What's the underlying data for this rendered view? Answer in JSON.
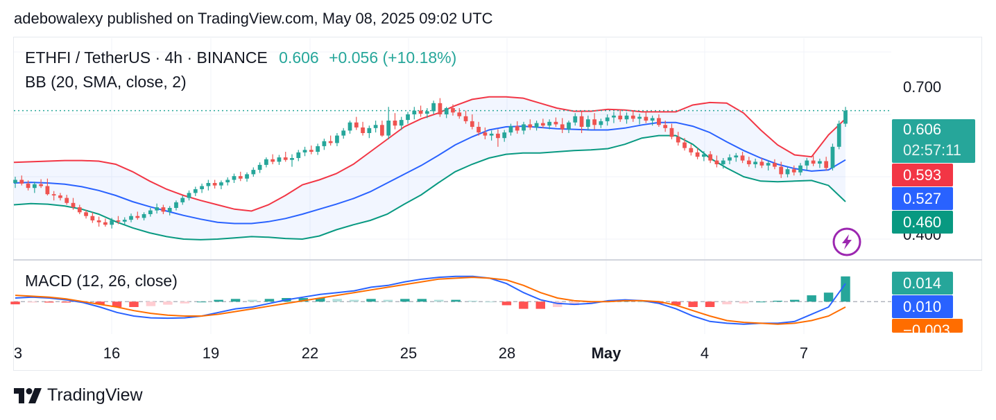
{
  "header": {
    "publisher": "adebowalexy published on TradingView.com, May 08, 2025 09:02 UTC"
  },
  "legend": {
    "symbol": "ETHFI / TetherUS · 4h · BINANCE",
    "price": "0.606",
    "change": "+0.056 (+10.18%)",
    "bb": "BB (20, SMA, close, 2)",
    "macd": "MACD (12, 26, close)"
  },
  "price_axis": {
    "labels": [
      "0.700",
      "0.400"
    ]
  },
  "tags": {
    "last_price": "0.606",
    "countdown": "02:57:11",
    "bb_upper": "0.593",
    "bb_basis": "0.527",
    "bb_lower": "0.460",
    "macd_hist": "0.014",
    "macd_line": "0.010",
    "signal_line": "−0.003"
  },
  "x_axis": {
    "labels": [
      "3",
      "16",
      "19",
      "22",
      "25",
      "28",
      "May",
      "4",
      "7"
    ]
  },
  "brand": {
    "name": "TradingView"
  },
  "colors": {
    "up": "#26a69a",
    "down": "#ef5350",
    "bb_upper": "#f23645",
    "bb_basis": "#2962ff",
    "bb_lower": "#089981",
    "macd": "#2962ff",
    "signal": "#ff6d00",
    "flash": "#9c27b0"
  },
  "chart_data": {
    "type": "candlestick",
    "timeframe": "4h",
    "ylim": [
      0.37,
      0.72
    ],
    "y_ticks": [
      0.4,
      0.7
    ],
    "last_price": 0.606,
    "bb_upper": [
      0.523,
      0.524,
      0.525,
      0.526,
      0.526,
      0.525,
      0.52,
      0.508,
      0.493,
      0.48,
      0.47,
      0.462,
      0.455,
      0.448,
      0.445,
      0.455,
      0.47,
      0.487,
      0.495,
      0.505,
      0.52,
      0.54,
      0.56,
      0.58,
      0.593,
      0.602,
      0.614,
      0.624,
      0.628,
      0.628,
      0.626,
      0.618,
      0.61,
      0.605,
      0.605,
      0.608,
      0.607,
      0.604,
      0.604,
      0.604,
      0.615,
      0.619,
      0.618,
      0.602,
      0.575,
      0.551,
      0.535,
      0.532,
      0.567,
      0.593
    ],
    "bb_basis": [
      0.49,
      0.491,
      0.49,
      0.488,
      0.484,
      0.478,
      0.47,
      0.46,
      0.452,
      0.445,
      0.438,
      0.432,
      0.427,
      0.425,
      0.425,
      0.428,
      0.433,
      0.44,
      0.448,
      0.456,
      0.465,
      0.476,
      0.49,
      0.504,
      0.518,
      0.534,
      0.551,
      0.564,
      0.575,
      0.58,
      0.581,
      0.579,
      0.577,
      0.576,
      0.575,
      0.575,
      0.578,
      0.583,
      0.587,
      0.587,
      0.581,
      0.571,
      0.556,
      0.542,
      0.53,
      0.52,
      0.513,
      0.509,
      0.511,
      0.527
    ],
    "bb_lower": [
      0.455,
      0.457,
      0.456,
      0.453,
      0.448,
      0.44,
      0.428,
      0.418,
      0.41,
      0.404,
      0.4,
      0.399,
      0.4,
      0.402,
      0.404,
      0.403,
      0.401,
      0.4,
      0.405,
      0.415,
      0.423,
      0.43,
      0.44,
      0.456,
      0.471,
      0.49,
      0.508,
      0.52,
      0.53,
      0.536,
      0.538,
      0.538,
      0.54,
      0.542,
      0.543,
      0.545,
      0.552,
      0.562,
      0.566,
      0.566,
      0.552,
      0.53,
      0.514,
      0.5,
      0.493,
      0.492,
      0.493,
      0.494,
      0.486,
      0.46
    ],
    "candles": [
      {
        "o": 0.49,
        "h": 0.5,
        "l": 0.482,
        "c": 0.495
      },
      {
        "o": 0.495,
        "h": 0.502,
        "l": 0.486,
        "c": 0.489
      },
      {
        "o": 0.489,
        "h": 0.494,
        "l": 0.478,
        "c": 0.482
      },
      {
        "o": 0.482,
        "h": 0.492,
        "l": 0.474,
        "c": 0.488
      },
      {
        "o": 0.488,
        "h": 0.496,
        "l": 0.482,
        "c": 0.485
      },
      {
        "o": 0.485,
        "h": 0.497,
        "l": 0.47,
        "c": 0.472
      },
      {
        "o": 0.472,
        "h": 0.477,
        "l": 0.462,
        "c": 0.47
      },
      {
        "o": 0.47,
        "h": 0.474,
        "l": 0.462,
        "c": 0.466
      },
      {
        "o": 0.466,
        "h": 0.471,
        "l": 0.455,
        "c": 0.458
      },
      {
        "o": 0.458,
        "h": 0.466,
        "l": 0.447,
        "c": 0.451
      },
      {
        "o": 0.451,
        "h": 0.455,
        "l": 0.44,
        "c": 0.443
      },
      {
        "o": 0.443,
        "h": 0.447,
        "l": 0.433,
        "c": 0.437
      },
      {
        "o": 0.437,
        "h": 0.443,
        "l": 0.426,
        "c": 0.43
      },
      {
        "o": 0.43,
        "h": 0.436,
        "l": 0.42,
        "c": 0.427
      },
      {
        "o": 0.427,
        "h": 0.433,
        "l": 0.42,
        "c": 0.423
      },
      {
        "o": 0.423,
        "h": 0.434,
        "l": 0.417,
        "c": 0.43
      },
      {
        "o": 0.43,
        "h": 0.437,
        "l": 0.424,
        "c": 0.428
      },
      {
        "o": 0.428,
        "h": 0.435,
        "l": 0.423,
        "c": 0.431
      },
      {
        "o": 0.431,
        "h": 0.441,
        "l": 0.427,
        "c": 0.437
      },
      {
        "o": 0.437,
        "h": 0.444,
        "l": 0.431,
        "c": 0.434
      },
      {
        "o": 0.434,
        "h": 0.443,
        "l": 0.43,
        "c": 0.44
      },
      {
        "o": 0.44,
        "h": 0.45,
        "l": 0.436,
        "c": 0.446
      },
      {
        "o": 0.446,
        "h": 0.457,
        "l": 0.441,
        "c": 0.451
      },
      {
        "o": 0.451,
        "h": 0.455,
        "l": 0.44,
        "c": 0.444
      },
      {
        "o": 0.444,
        "h": 0.453,
        "l": 0.438,
        "c": 0.45
      },
      {
        "o": 0.45,
        "h": 0.462,
        "l": 0.446,
        "c": 0.459
      },
      {
        "o": 0.459,
        "h": 0.47,
        "l": 0.455,
        "c": 0.466
      },
      {
        "o": 0.466,
        "h": 0.478,
        "l": 0.462,
        "c": 0.474
      },
      {
        "o": 0.474,
        "h": 0.484,
        "l": 0.469,
        "c": 0.48
      },
      {
        "o": 0.48,
        "h": 0.489,
        "l": 0.474,
        "c": 0.485
      },
      {
        "o": 0.485,
        "h": 0.495,
        "l": 0.478,
        "c": 0.49
      },
      {
        "o": 0.49,
        "h": 0.495,
        "l": 0.481,
        "c": 0.486
      },
      {
        "o": 0.486,
        "h": 0.494,
        "l": 0.48,
        "c": 0.491
      },
      {
        "o": 0.491,
        "h": 0.499,
        "l": 0.486,
        "c": 0.495
      },
      {
        "o": 0.495,
        "h": 0.505,
        "l": 0.49,
        "c": 0.501
      },
      {
        "o": 0.501,
        "h": 0.508,
        "l": 0.493,
        "c": 0.497
      },
      {
        "o": 0.497,
        "h": 0.507,
        "l": 0.492,
        "c": 0.504
      },
      {
        "o": 0.504,
        "h": 0.515,
        "l": 0.5,
        "c": 0.511
      },
      {
        "o": 0.511,
        "h": 0.523,
        "l": 0.506,
        "c": 0.519
      },
      {
        "o": 0.519,
        "h": 0.531,
        "l": 0.515,
        "c": 0.528
      },
      {
        "o": 0.528,
        "h": 0.536,
        "l": 0.52,
        "c": 0.524
      },
      {
        "o": 0.524,
        "h": 0.535,
        "l": 0.519,
        "c": 0.531
      },
      {
        "o": 0.531,
        "h": 0.54,
        "l": 0.524,
        "c": 0.527
      },
      {
        "o": 0.527,
        "h": 0.536,
        "l": 0.516,
        "c": 0.53
      },
      {
        "o": 0.53,
        "h": 0.543,
        "l": 0.525,
        "c": 0.539
      },
      {
        "o": 0.539,
        "h": 0.548,
        "l": 0.533,
        "c": 0.543
      },
      {
        "o": 0.543,
        "h": 0.55,
        "l": 0.536,
        "c": 0.54
      },
      {
        "o": 0.54,
        "h": 0.553,
        "l": 0.535,
        "c": 0.549
      },
      {
        "o": 0.549,
        "h": 0.561,
        "l": 0.543,
        "c": 0.557
      },
      {
        "o": 0.557,
        "h": 0.566,
        "l": 0.55,
        "c": 0.554
      },
      {
        "o": 0.554,
        "h": 0.57,
        "l": 0.549,
        "c": 0.566
      },
      {
        "o": 0.566,
        "h": 0.578,
        "l": 0.561,
        "c": 0.574
      },
      {
        "o": 0.574,
        "h": 0.59,
        "l": 0.569,
        "c": 0.587
      },
      {
        "o": 0.587,
        "h": 0.596,
        "l": 0.575,
        "c": 0.579
      },
      {
        "o": 0.579,
        "h": 0.588,
        "l": 0.566,
        "c": 0.57
      },
      {
        "o": 0.57,
        "h": 0.582,
        "l": 0.562,
        "c": 0.578
      },
      {
        "o": 0.578,
        "h": 0.59,
        "l": 0.571,
        "c": 0.583
      },
      {
        "o": 0.583,
        "h": 0.59,
        "l": 0.564,
        "c": 0.566
      },
      {
        "o": 0.566,
        "h": 0.612,
        "l": 0.56,
        "c": 0.59
      },
      {
        "o": 0.59,
        "h": 0.602,
        "l": 0.576,
        "c": 0.582
      },
      {
        "o": 0.582,
        "h": 0.596,
        "l": 0.575,
        "c": 0.591
      },
      {
        "o": 0.591,
        "h": 0.604,
        "l": 0.585,
        "c": 0.6
      },
      {
        "o": 0.6,
        "h": 0.612,
        "l": 0.592,
        "c": 0.606
      },
      {
        "o": 0.606,
        "h": 0.614,
        "l": 0.596,
        "c": 0.601
      },
      {
        "o": 0.601,
        "h": 0.61,
        "l": 0.594,
        "c": 0.605
      },
      {
        "o": 0.605,
        "h": 0.622,
        "l": 0.6,
        "c": 0.618
      },
      {
        "o": 0.618,
        "h": 0.626,
        "l": 0.596,
        "c": 0.6
      },
      {
        "o": 0.6,
        "h": 0.612,
        "l": 0.594,
        "c": 0.61
      },
      {
        "o": 0.61,
        "h": 0.616,
        "l": 0.598,
        "c": 0.603
      },
      {
        "o": 0.603,
        "h": 0.61,
        "l": 0.593,
        "c": 0.597
      },
      {
        "o": 0.597,
        "h": 0.606,
        "l": 0.585,
        "c": 0.589
      },
      {
        "o": 0.589,
        "h": 0.6,
        "l": 0.576,
        "c": 0.58
      },
      {
        "o": 0.58,
        "h": 0.588,
        "l": 0.566,
        "c": 0.571
      },
      {
        "o": 0.571,
        "h": 0.579,
        "l": 0.56,
        "c": 0.566
      },
      {
        "o": 0.566,
        "h": 0.574,
        "l": 0.558,
        "c": 0.569
      },
      {
        "o": 0.569,
        "h": 0.576,
        "l": 0.548,
        "c": 0.562
      },
      {
        "o": 0.562,
        "h": 0.575,
        "l": 0.556,
        "c": 0.571
      },
      {
        "o": 0.571,
        "h": 0.585,
        "l": 0.566,
        "c": 0.581
      },
      {
        "o": 0.581,
        "h": 0.589,
        "l": 0.569,
        "c": 0.574
      },
      {
        "o": 0.574,
        "h": 0.588,
        "l": 0.568,
        "c": 0.584
      },
      {
        "o": 0.584,
        "h": 0.592,
        "l": 0.575,
        "c": 0.579
      },
      {
        "o": 0.579,
        "h": 0.59,
        "l": 0.574,
        "c": 0.586
      },
      {
        "o": 0.586,
        "h": 0.593,
        "l": 0.578,
        "c": 0.582
      },
      {
        "o": 0.582,
        "h": 0.592,
        "l": 0.576,
        "c": 0.588
      },
      {
        "o": 0.588,
        "h": 0.595,
        "l": 0.58,
        "c": 0.584
      },
      {
        "o": 0.584,
        "h": 0.594,
        "l": 0.57,
        "c": 0.576
      },
      {
        "o": 0.576,
        "h": 0.59,
        "l": 0.57,
        "c": 0.587
      },
      {
        "o": 0.587,
        "h": 0.602,
        "l": 0.582,
        "c": 0.597
      },
      {
        "o": 0.597,
        "h": 0.604,
        "l": 0.57,
        "c": 0.58
      },
      {
        "o": 0.58,
        "h": 0.598,
        "l": 0.574,
        "c": 0.592
      },
      {
        "o": 0.592,
        "h": 0.602,
        "l": 0.576,
        "c": 0.583
      },
      {
        "o": 0.583,
        "h": 0.593,
        "l": 0.578,
        "c": 0.589
      },
      {
        "o": 0.589,
        "h": 0.6,
        "l": 0.582,
        "c": 0.595
      },
      {
        "o": 0.595,
        "h": 0.604,
        "l": 0.586,
        "c": 0.598
      },
      {
        "o": 0.598,
        "h": 0.606,
        "l": 0.588,
        "c": 0.592
      },
      {
        "o": 0.592,
        "h": 0.603,
        "l": 0.585,
        "c": 0.598
      },
      {
        "o": 0.598,
        "h": 0.605,
        "l": 0.588,
        "c": 0.593
      },
      {
        "o": 0.593,
        "h": 0.601,
        "l": 0.584,
        "c": 0.596
      },
      {
        "o": 0.596,
        "h": 0.603,
        "l": 0.586,
        "c": 0.59
      },
      {
        "o": 0.59,
        "h": 0.598,
        "l": 0.582,
        "c": 0.594
      },
      {
        "o": 0.594,
        "h": 0.6,
        "l": 0.58,
        "c": 0.583
      },
      {
        "o": 0.583,
        "h": 0.59,
        "l": 0.572,
        "c": 0.578
      },
      {
        "o": 0.578,
        "h": 0.585,
        "l": 0.56,
        "c": 0.564
      },
      {
        "o": 0.564,
        "h": 0.572,
        "l": 0.55,
        "c": 0.555
      },
      {
        "o": 0.555,
        "h": 0.562,
        "l": 0.542,
        "c": 0.546
      },
      {
        "o": 0.546,
        "h": 0.552,
        "l": 0.534,
        "c": 0.539
      },
      {
        "o": 0.539,
        "h": 0.546,
        "l": 0.528,
        "c": 0.532
      },
      {
        "o": 0.532,
        "h": 0.541,
        "l": 0.525,
        "c": 0.536
      },
      {
        "o": 0.536,
        "h": 0.541,
        "l": 0.522,
        "c": 0.526
      },
      {
        "o": 0.526,
        "h": 0.534,
        "l": 0.515,
        "c": 0.52
      },
      {
        "o": 0.52,
        "h": 0.53,
        "l": 0.513,
        "c": 0.526
      },
      {
        "o": 0.526,
        "h": 0.536,
        "l": 0.52,
        "c": 0.531
      },
      {
        "o": 0.531,
        "h": 0.538,
        "l": 0.524,
        "c": 0.534
      },
      {
        "o": 0.534,
        "h": 0.54,
        "l": 0.522,
        "c": 0.526
      },
      {
        "o": 0.526,
        "h": 0.532,
        "l": 0.516,
        "c": 0.52
      },
      {
        "o": 0.52,
        "h": 0.529,
        "l": 0.514,
        "c": 0.524
      },
      {
        "o": 0.524,
        "h": 0.53,
        "l": 0.514,
        "c": 0.518
      },
      {
        "o": 0.518,
        "h": 0.526,
        "l": 0.51,
        "c": 0.522
      },
      {
        "o": 0.522,
        "h": 0.528,
        "l": 0.512,
        "c": 0.516
      },
      {
        "o": 0.516,
        "h": 0.524,
        "l": 0.498,
        "c": 0.504
      },
      {
        "o": 0.504,
        "h": 0.516,
        "l": 0.499,
        "c": 0.512
      },
      {
        "o": 0.512,
        "h": 0.518,
        "l": 0.502,
        "c": 0.507
      },
      {
        "o": 0.507,
        "h": 0.522,
        "l": 0.502,
        "c": 0.518
      },
      {
        "o": 0.518,
        "h": 0.53,
        "l": 0.51,
        "c": 0.526
      },
      {
        "o": 0.526,
        "h": 0.534,
        "l": 0.517,
        "c": 0.521
      },
      {
        "o": 0.521,
        "h": 0.529,
        "l": 0.514,
        "c": 0.525
      },
      {
        "o": 0.525,
        "h": 0.532,
        "l": 0.51,
        "c": 0.514
      },
      {
        "o": 0.514,
        "h": 0.553,
        "l": 0.51,
        "c": 0.548
      },
      {
        "o": 0.548,
        "h": 0.59,
        "l": 0.544,
        "c": 0.585
      },
      {
        "o": 0.585,
        "h": 0.612,
        "l": 0.58,
        "c": 0.606
      }
    ],
    "macd_line": [
      0.002,
      0.0025,
      0.002,
      0.001,
      -0.0005,
      -0.003,
      -0.006,
      -0.008,
      -0.009,
      -0.0092,
      -0.009,
      -0.008,
      -0.006,
      -0.004,
      -0.003,
      -0.001,
      0.001,
      0.0025,
      0.004,
      0.005,
      0.006,
      0.008,
      0.009,
      0.011,
      0.0125,
      0.0135,
      0.014,
      0.014,
      0.013,
      0.01,
      0.005,
      0.001,
      -0.001,
      -0.0015,
      -0.001,
      0.0005,
      0.001,
      0.0005,
      -0.001,
      -0.004,
      -0.008,
      -0.011,
      -0.012,
      -0.0125,
      -0.012,
      -0.012,
      -0.011,
      -0.007,
      -0.003,
      0.01
    ],
    "signal_line": [
      0.0035,
      0.003,
      0.0025,
      0.0015,
      0.0,
      -0.0015,
      -0.003,
      -0.005,
      -0.0065,
      -0.0075,
      -0.008,
      -0.008,
      -0.007,
      -0.0055,
      -0.004,
      -0.0025,
      -0.001,
      0.0005,
      0.002,
      0.0035,
      0.005,
      0.0065,
      0.008,
      0.0095,
      0.011,
      0.0125,
      0.013,
      0.0135,
      0.013,
      0.012,
      0.009,
      0.005,
      0.002,
      0.0005,
      0.0,
      0.0,
      0.0005,
      0.0005,
      0.0,
      -0.002,
      -0.005,
      -0.008,
      -0.0105,
      -0.0115,
      -0.012,
      -0.0125,
      -0.012,
      -0.0105,
      -0.008,
      -0.003
    ],
    "macd_hist": [
      -0.0015,
      -0.0005,
      -0.0005,
      -0.0005,
      -0.0005,
      -0.0015,
      -0.003,
      -0.003,
      -0.0025,
      -0.0017,
      -0.001,
      0.0,
      0.001,
      0.0015,
      0.001,
      0.0015,
      0.002,
      0.002,
      0.002,
      0.0015,
      0.001,
      0.0015,
      0.001,
      0.0015,
      0.0015,
      0.001,
      0.001,
      0.0005,
      0.0,
      -0.002,
      -0.004,
      -0.004,
      -0.003,
      -0.002,
      -0.001,
      0.0005,
      0.0005,
      0.0,
      -0.001,
      -0.002,
      -0.003,
      -0.003,
      -0.0015,
      -0.001,
      0.0,
      0.0005,
      0.001,
      0.0035,
      0.005,
      0.014
    ],
    "macd_ylim": [
      -0.018,
      0.022
    ]
  }
}
